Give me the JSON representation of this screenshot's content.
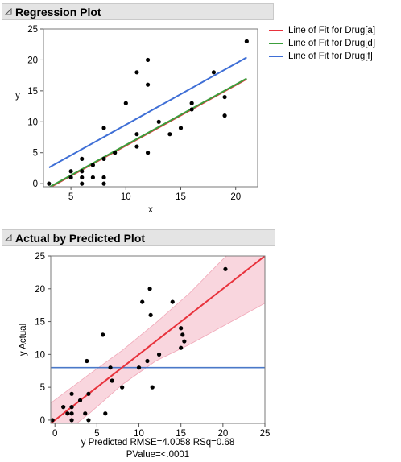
{
  "colors": {
    "red": "#e8323c",
    "green": "#3c9e3c",
    "blue": "#3f6fd6",
    "band": "#f6c8d2",
    "hline": "#4a78c8"
  },
  "regression": {
    "title": "Regression Plot",
    "legend": [
      {
        "label": "Line of Fit for Drug[a]",
        "color": "#e8323c"
      },
      {
        "label": "Line of Fit for Drug[d]",
        "color": "#3c9e3c"
      },
      {
        "label": "Line of Fit for Drug[f]",
        "color": "#3f6fd6"
      }
    ]
  },
  "avp": {
    "title": "Actual by Predicted Plot",
    "footer_line1": "y Predicted RMSE=4.0058 RSq=0.68",
    "footer_line2": "PValue=<.0001"
  },
  "chart_data": [
    {
      "type": "scatter",
      "title": "Regression Plot",
      "xlabel": "x",
      "ylabel": "y",
      "xlim": [
        2.5,
        22
      ],
      "ylim": [
        -0.5,
        25
      ],
      "xticks": [
        5,
        10,
        15,
        20
      ],
      "yticks": [
        0,
        5,
        10,
        15,
        20,
        25
      ],
      "points": [
        [
          3,
          0
        ],
        [
          5,
          2
        ],
        [
          5,
          1
        ],
        [
          6,
          4
        ],
        [
          6,
          2
        ],
        [
          6,
          1
        ],
        [
          6,
          0
        ],
        [
          7,
          3
        ],
        [
          7,
          1
        ],
        [
          8,
          9
        ],
        [
          8,
          4
        ],
        [
          8,
          1
        ],
        [
          8,
          0
        ],
        [
          9,
          5
        ],
        [
          10,
          13
        ],
        [
          11,
          18
        ],
        [
          11,
          8
        ],
        [
          11,
          6
        ],
        [
          12,
          20
        ],
        [
          12,
          16
        ],
        [
          12,
          5
        ],
        [
          13,
          10
        ],
        [
          14,
          8
        ],
        [
          15,
          9
        ],
        [
          16,
          13
        ],
        [
          16,
          12
        ],
        [
          18,
          18
        ],
        [
          19,
          14
        ],
        [
          19,
          11
        ],
        [
          21,
          23
        ]
      ],
      "lines": [
        {
          "name": "Line of Fit for Drug[a]",
          "color": "#e8323c",
          "x": [
            3,
            21
          ],
          "y": [
            -0.7,
            16.9
          ]
        },
        {
          "name": "Line of Fit for Drug[d]",
          "color": "#3c9e3c",
          "x": [
            3,
            21
          ],
          "y": [
            -0.6,
            17.0
          ]
        },
        {
          "name": "Line of Fit for Drug[f]",
          "color": "#3f6fd6",
          "x": [
            3,
            21
          ],
          "y": [
            2.6,
            20.4
          ]
        }
      ]
    },
    {
      "type": "scatter",
      "title": "Actual by Predicted Plot",
      "xlabel": "y Predicted RMSE=4.0058 RSq=0.68",
      "ylabel": "y Actual",
      "xlim": [
        -0.5,
        25
      ],
      "ylim": [
        -0.5,
        25
      ],
      "xticks": [
        0,
        5,
        10,
        15,
        20,
        25
      ],
      "yticks": [
        0,
        5,
        10,
        15,
        20,
        25
      ],
      "points": [
        [
          -0.3,
          0
        ],
        [
          1,
          2
        ],
        [
          1.5,
          1
        ],
        [
          2,
          4
        ],
        [
          2,
          2
        ],
        [
          2,
          1
        ],
        [
          2,
          0
        ],
        [
          3,
          3
        ],
        [
          3.6,
          1
        ],
        [
          3.8,
          9
        ],
        [
          4,
          4
        ],
        [
          4,
          0
        ],
        [
          5.7,
          13
        ],
        [
          6,
          1
        ],
        [
          6.6,
          8
        ],
        [
          6.8,
          6
        ],
        [
          8,
          5
        ],
        [
          10,
          8
        ],
        [
          10.4,
          18
        ],
        [
          11,
          9
        ],
        [
          11.3,
          20
        ],
        [
          11.4,
          16
        ],
        [
          11.6,
          5
        ],
        [
          12.4,
          10
        ],
        [
          14,
          18
        ],
        [
          15,
          14
        ],
        [
          15,
          11
        ],
        [
          15.2,
          13
        ],
        [
          15.4,
          12
        ],
        [
          20.3,
          23
        ]
      ],
      "fit_line": {
        "x": [
          -0.5,
          25
        ],
        "y": [
          -0.5,
          25
        ]
      },
      "mean_line": 8,
      "confidence_band": {
        "x": [
          -0.5,
          4,
          8,
          12,
          16,
          20,
          25
        ],
        "lower": [
          -3.6,
          0.9,
          5.4,
          9.0,
          11.5,
          14.3,
          17.8
        ],
        "upper": [
          2.6,
          6.9,
          10.6,
          14.8,
          19.3,
          24.5,
          30.2
        ]
      }
    }
  ]
}
